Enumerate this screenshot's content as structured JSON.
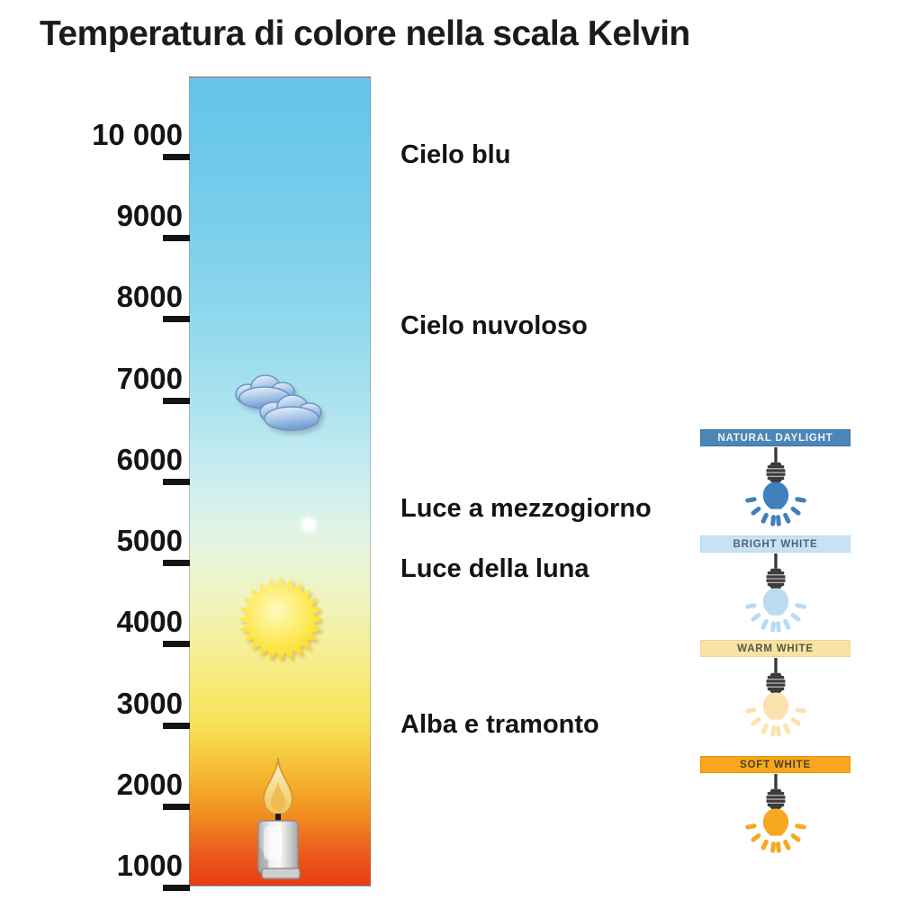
{
  "title": "Temperatura di colore nella scala Kelvin",
  "kelvin_scale": {
    "unit": "Kelvin",
    "tick_labels": [
      "10 000",
      "9000",
      "8000",
      "7000",
      "6000",
      "5000",
      "4000",
      "3000",
      "2000",
      "1000"
    ],
    "min_value": 1000,
    "max_value": 10000,
    "gradient_stops": [
      {
        "pos": "0%",
        "color": "#64c4e9"
      },
      {
        "pos": "10%",
        "color": "#6fc9ea"
      },
      {
        "pos": "20%",
        "color": "#7dcfec"
      },
      {
        "pos": "30%",
        "color": "#90d8ed"
      },
      {
        "pos": "40%",
        "color": "#aae2ef"
      },
      {
        "pos": "47%",
        "color": "#c2eaf1"
      },
      {
        "pos": "53%",
        "color": "#d6f1ec"
      },
      {
        "pos": "59%",
        "color": "#e7f5da"
      },
      {
        "pos": "65%",
        "color": "#f0f3bb"
      },
      {
        "pos": "70%",
        "color": "#f5ef9b"
      },
      {
        "pos": "75%",
        "color": "#f7ea76"
      },
      {
        "pos": "80%",
        "color": "#f8e156"
      },
      {
        "pos": "84%",
        "color": "#f6c93e"
      },
      {
        "pos": "88%",
        "color": "#f4ab29"
      },
      {
        "pos": "92%",
        "color": "#f08620"
      },
      {
        "pos": "96%",
        "color": "#eb5b1b"
      },
      {
        "pos": "100%",
        "color": "#e73c16"
      }
    ]
  },
  "annotations": [
    {
      "label": "Cielo blu"
    },
    {
      "label": "Cielo nuvoloso"
    },
    {
      "label": "Luce a mezzogiorno"
    },
    {
      "label": "Luce della luna"
    },
    {
      "label": "Alba e tramonto"
    }
  ],
  "scale_icons": [
    {
      "name": "clouds-icon"
    },
    {
      "name": "moon-icon"
    },
    {
      "name": "sun-icon"
    },
    {
      "name": "candle-icon"
    }
  ],
  "bulbs": [
    {
      "label": "NATURAL DAYLIGHT",
      "banner_color": "#4c86b6",
      "border_color": "#3a6f9e",
      "text_color": "#eef4fa",
      "bulb_color": "#3f80bd"
    },
    {
      "label": "BRIGHT WHITE",
      "banner_color": "#c8e2f5",
      "border_color": "#b5d6ee",
      "text_color": "#56606b",
      "bulb_color": "#badbf2"
    },
    {
      "label": "WARM WHITE",
      "banner_color": "#f9e3a4",
      "border_color": "#eed28e",
      "text_color": "#5a5243",
      "bulb_color": "#fae3ae"
    },
    {
      "label": "SOFT WHITE",
      "banner_color": "#f6a71e",
      "border_color": "#e3920d",
      "text_color": "#4e4124",
      "bulb_color": "#f6a920"
    }
  ]
}
